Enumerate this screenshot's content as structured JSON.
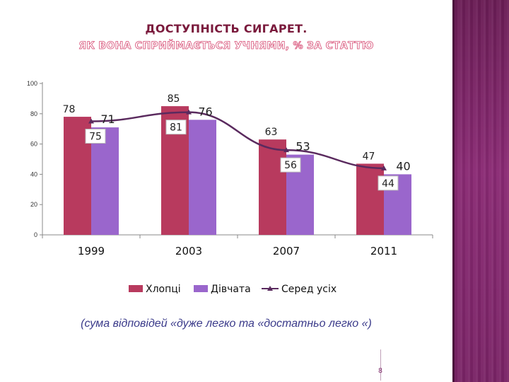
{
  "title": {
    "line1": "Доступність сигарет.",
    "line2": "Як вона сприймається учнями, % за статтю"
  },
  "note": "(сума відповідей «дуже легко та «достатньо легко «)",
  "page_number": "8",
  "colors": {
    "boys": "#b83a5e",
    "girls": "#9a66cc",
    "all": "#5a2a5e",
    "side_panel": "#7a2466"
  },
  "chart_data": {
    "type": "bar",
    "categories": [
      "1999",
      "2003",
      "2007",
      "2011"
    ],
    "series": [
      {
        "name": "Хлопці",
        "type": "bar",
        "values": [
          78,
          85,
          63,
          47
        ],
        "labels": [
          "78",
          "85",
          "63",
          "47"
        ]
      },
      {
        "name": "Дівчата",
        "type": "bar",
        "values": [
          71,
          76,
          53,
          40
        ],
        "labels": [
          "71",
          "76",
          "53",
          "40"
        ]
      },
      {
        "name": "Серед усіх",
        "type": "line",
        "values": [
          75,
          81,
          56,
          44
        ],
        "labels": [
          "75",
          "81",
          "56",
          "44"
        ]
      }
    ],
    "yticks": [
      "0",
      "20",
      "40",
      "60",
      "80",
      "100"
    ],
    "ylim": [
      0,
      100
    ],
    "grid": false,
    "legend": "bottom"
  }
}
